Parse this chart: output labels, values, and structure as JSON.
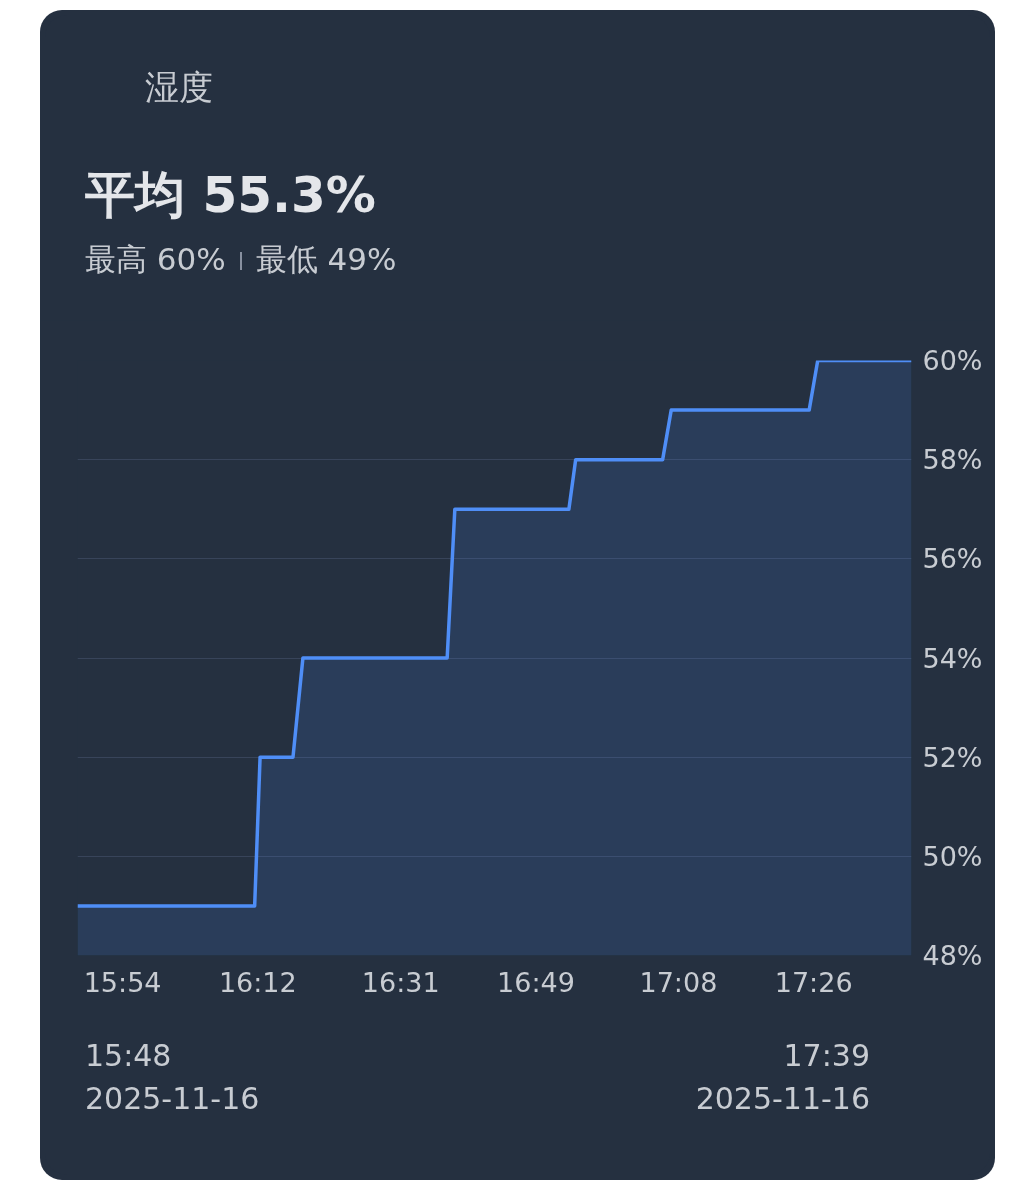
{
  "chart_data": {
    "type": "area",
    "title": "湿度",
    "subtitle": "平均 55.3%",
    "annotations": [
      "最高 60%",
      "最低 49%",
      "15:48\n2025-11-16",
      "17:39\n2025-11-16"
    ],
    "x": [
      15.8,
      16.193,
      16.205,
      16.278,
      16.3,
      16.62,
      16.637,
      16.89,
      16.905,
      17.098,
      17.117,
      17.423,
      17.442,
      17.65
    ],
    "series": [
      {
        "color": "#4f8ef7",
        "values": [
          49,
          49,
          52,
          52,
          54,
          54,
          57,
          57,
          58,
          58,
          59,
          59,
          60,
          60
        ]
      }
    ],
    "xlim": [
      15.8,
      17.65
    ],
    "xticks": [
      {
        "value": 15.9,
        "label": "15:54"
      },
      {
        "value": 16.2,
        "label": "16:12"
      },
      {
        "value": 16.517,
        "label": "16:31"
      },
      {
        "value": 16.817,
        "label": "16:49"
      },
      {
        "value": 17.133,
        "label": "17:08"
      },
      {
        "value": 17.433,
        "label": "17:26"
      }
    ],
    "ylim": [
      48,
      60
    ],
    "yticks": [
      {
        "value": 48,
        "label": "48%"
      },
      {
        "value": 50,
        "label": "50%"
      },
      {
        "value": 52,
        "label": "52%"
      },
      {
        "value": 54,
        "label": "54%"
      },
      {
        "value": 56,
        "label": "56%"
      },
      {
        "value": 58,
        "label": "58%"
      },
      {
        "value": 60,
        "label": "60%"
      }
    ],
    "grid": "y",
    "line_style": "solid"
  }
}
